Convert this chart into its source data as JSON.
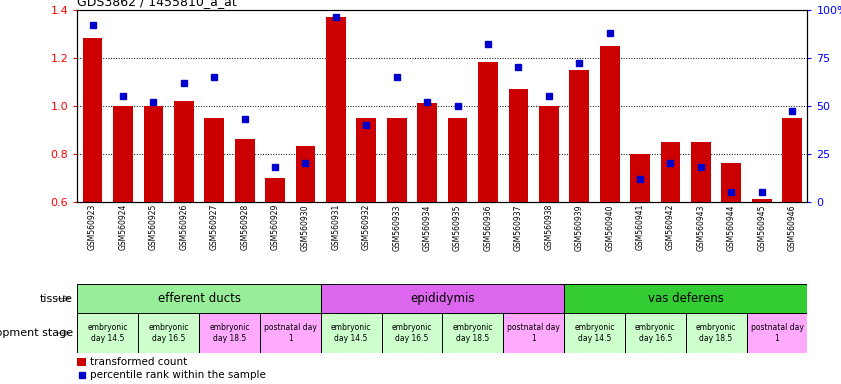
{
  "title": "GDS3862 / 1455810_a_at",
  "samples": [
    "GSM560923",
    "GSM560924",
    "GSM560925",
    "GSM560926",
    "GSM560927",
    "GSM560928",
    "GSM560929",
    "GSM560930",
    "GSM560931",
    "GSM560932",
    "GSM560933",
    "GSM560934",
    "GSM560935",
    "GSM560936",
    "GSM560937",
    "GSM560938",
    "GSM560939",
    "GSM560940",
    "GSM560941",
    "GSM560942",
    "GSM560943",
    "GSM560944",
    "GSM560945",
    "GSM560946"
  ],
  "red_values": [
    1.28,
    1.0,
    1.0,
    1.02,
    0.95,
    0.86,
    0.7,
    0.83,
    1.37,
    0.95,
    0.95,
    1.01,
    0.95,
    1.18,
    1.07,
    1.0,
    1.15,
    1.25,
    0.8,
    0.85,
    0.85,
    0.76,
    0.61,
    0.95
  ],
  "blue_percentiles": [
    92,
    55,
    52,
    62,
    65,
    43,
    18,
    20,
    96,
    40,
    65,
    52,
    50,
    82,
    70,
    55,
    72,
    88,
    12,
    20,
    18,
    5,
    5,
    47
  ],
  "ylim_left": [
    0.6,
    1.4
  ],
  "ylim_right": [
    0,
    100
  ],
  "yticks_left": [
    0.6,
    0.8,
    1.0,
    1.2,
    1.4
  ],
  "yticks_right": [
    0,
    25,
    50,
    75,
    100
  ],
  "ytick_labels_right": [
    "0",
    "25",
    "50",
    "75",
    "100%"
  ],
  "bar_bottom": 0.6,
  "red_color": "#cc0000",
  "blue_color": "#0000cc",
  "tissue_groups": [
    {
      "label": "efferent ducts",
      "start": 0,
      "end": 7,
      "color": "#99ee99"
    },
    {
      "label": "epididymis",
      "start": 8,
      "end": 15,
      "color": "#dd66ee"
    },
    {
      "label": "vas deferens",
      "start": 16,
      "end": 23,
      "color": "#33cc33"
    }
  ],
  "dev_stage_groups": [
    {
      "label": "embryonic\nday 14.5",
      "start": 0,
      "end": 1,
      "color": "#ccffcc"
    },
    {
      "label": "embryonic\nday 16.5",
      "start": 2,
      "end": 3,
      "color": "#ccffcc"
    },
    {
      "label": "embryonic\nday 18.5",
      "start": 4,
      "end": 5,
      "color": "#ffaaff"
    },
    {
      "label": "postnatal day\n1",
      "start": 6,
      "end": 7,
      "color": "#ffaaff"
    },
    {
      "label": "embryonic\nday 14.5",
      "start": 8,
      "end": 9,
      "color": "#ccffcc"
    },
    {
      "label": "embryonic\nday 16.5",
      "start": 10,
      "end": 11,
      "color": "#ccffcc"
    },
    {
      "label": "embryonic\nday 18.5",
      "start": 12,
      "end": 13,
      "color": "#ccffcc"
    },
    {
      "label": "postnatal day\n1",
      "start": 14,
      "end": 15,
      "color": "#ffaaff"
    },
    {
      "label": "embryonic\nday 14.5",
      "start": 16,
      "end": 17,
      "color": "#ccffcc"
    },
    {
      "label": "embryonic\nday 16.5",
      "start": 18,
      "end": 19,
      "color": "#ccffcc"
    },
    {
      "label": "embryonic\nday 18.5",
      "start": 20,
      "end": 21,
      "color": "#ccffcc"
    },
    {
      "label": "postnatal day\n1",
      "start": 22,
      "end": 23,
      "color": "#ffaaff"
    }
  ],
  "legend_red": "transformed count",
  "legend_blue": "percentile rank within the sample",
  "label_tissue": "tissue",
  "label_dev": "development stage",
  "bg_color": "#ffffff",
  "xtick_bg_color": "#cccccc",
  "blue_marker_size": 5
}
